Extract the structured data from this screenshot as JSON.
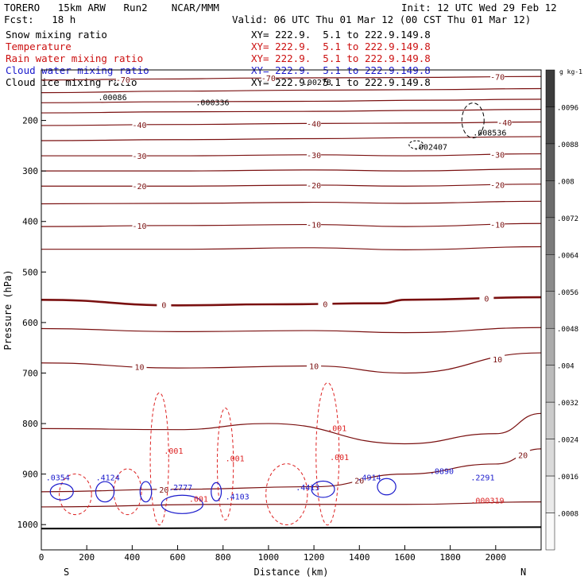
{
  "header": {
    "model": "TORERO   15km ARW   Run2    NCAR/MMM",
    "init": "Init: 12 UTC Wed 29 Feb 12",
    "fcst": "Fcst:   18 h",
    "valid": "Valid: 06 UTC Thu 01 Mar 12 (00 CST Thu 01 Mar 12)"
  },
  "legend": [
    {
      "field": "Snow mixing ratio",
      "xy": "XY= 222.9.  5.1 to 222.9.149.8",
      "color": "#000000"
    },
    {
      "field": "Temperature",
      "xy": "XY= 222.9.  5.1 to 222.9.149.8",
      "color": "#cc1111"
    },
    {
      "field": "Rain water mixing ratio",
      "xy": "XY= 222.9.  5.1 to 222.9.149.8",
      "color": "#cc1111"
    },
    {
      "field": "Cloud water mixing ratio",
      "xy": "XY= 222.9.  5.1 to 222.9.149.8",
      "color": "#1a1acc"
    },
    {
      "field": "Cloud ice mixing ratio",
      "xy": "XY= 222.9.  5.1 to 222.9.149.8",
      "color": "#000000"
    }
  ],
  "chart_data": {
    "type": "cross-section contour",
    "xlabel": "Distance (km)",
    "ylabel": "Pressure (hPa)",
    "xlim": [
      0,
      2200
    ],
    "ylim": [
      1050,
      100
    ],
    "x_ticks": [
      0,
      200,
      400,
      600,
      800,
      1000,
      1200,
      1400,
      1600,
      1800,
      2000
    ],
    "y_ticks": [
      200,
      300,
      400,
      500,
      600,
      700,
      800,
      900,
      1000
    ],
    "x_end_labels": {
      "left": "S",
      "right": "N"
    },
    "colorbar": {
      "unit": "g kg-1",
      "ticks": [
        ".0096",
        ".0088",
        ".008",
        ".0072",
        ".0064",
        ".0056",
        ".0048",
        ".004",
        ".0032",
        ".0024",
        ".0016",
        ".0008"
      ]
    },
    "temperature_contours": [
      {
        "label": "-70",
        "points": [
          [
            0,
            120
          ],
          [
            500,
            118
          ],
          [
            1000,
            116
          ],
          [
            1600,
            115
          ],
          [
            2200,
            113
          ]
        ]
      },
      {
        "label": "",
        "points": [
          [
            0,
            145
          ],
          [
            600,
            142
          ],
          [
            1200,
            140
          ],
          [
            1700,
            139
          ],
          [
            2200,
            137
          ]
        ]
      },
      {
        "label": "",
        "points": [
          [
            0,
            165
          ],
          [
            600,
            163
          ],
          [
            1200,
            162
          ],
          [
            1700,
            160
          ],
          [
            2200,
            158
          ]
        ]
      },
      {
        "label": "",
        "points": [
          [
            0,
            185
          ],
          [
            600,
            183
          ],
          [
            1200,
            182
          ],
          [
            1700,
            180
          ],
          [
            2200,
            178
          ]
        ]
      },
      {
        "label": "-40",
        "points": [
          [
            0,
            210
          ],
          [
            600,
            208
          ],
          [
            1200,
            206
          ],
          [
            1700,
            205
          ],
          [
            2200,
            203
          ]
        ]
      },
      {
        "label": "",
        "points": [
          [
            0,
            240
          ],
          [
            600,
            238
          ],
          [
            1200,
            236
          ],
          [
            1700,
            234
          ],
          [
            2200,
            232
          ]
        ]
      },
      {
        "label": "-30",
        "points": [
          [
            0,
            270
          ],
          [
            600,
            270
          ],
          [
            1200,
            268
          ],
          [
            1600,
            270
          ],
          [
            2200,
            266
          ]
        ]
      },
      {
        "label": "",
        "points": [
          [
            0,
            300
          ],
          [
            600,
            300
          ],
          [
            1200,
            298
          ],
          [
            1600,
            300
          ],
          [
            2200,
            296
          ]
        ]
      },
      {
        "label": "-20",
        "points": [
          [
            0,
            330
          ],
          [
            600,
            330
          ],
          [
            1200,
            328
          ],
          [
            1600,
            330
          ],
          [
            2200,
            326
          ]
        ]
      },
      {
        "label": "",
        "points": [
          [
            0,
            365
          ],
          [
            600,
            364
          ],
          [
            1200,
            362
          ],
          [
            1600,
            364
          ],
          [
            2200,
            360
          ]
        ]
      },
      {
        "label": "-10",
        "points": [
          [
            0,
            410
          ],
          [
            600,
            408
          ],
          [
            1200,
            406
          ],
          [
            1600,
            410
          ],
          [
            2200,
            404
          ]
        ]
      },
      {
        "label": "",
        "points": [
          [
            0,
            455
          ],
          [
            600,
            455
          ],
          [
            1200,
            452
          ],
          [
            1600,
            456
          ],
          [
            2200,
            450
          ]
        ]
      },
      {
        "label": "0",
        "points": [
          [
            0,
            555
          ],
          [
            600,
            566
          ],
          [
            1000,
            564
          ],
          [
            1500,
            562
          ],
          [
            1600,
            555
          ],
          [
            2200,
            550
          ]
        ]
      },
      {
        "label": "",
        "points": [
          [
            0,
            612
          ],
          [
            600,
            618
          ],
          [
            1200,
            616
          ],
          [
            1600,
            620
          ],
          [
            2200,
            610
          ]
        ]
      },
      {
        "label": "10",
        "points": [
          [
            0,
            680
          ],
          [
            600,
            690
          ],
          [
            1200,
            686
          ],
          [
            1600,
            700
          ],
          [
            2200,
            660
          ]
        ]
      },
      {
        "label": "",
        "points": [
          [
            0,
            810
          ],
          [
            600,
            812
          ],
          [
            1000,
            800
          ],
          [
            1600,
            840
          ],
          [
            2000,
            820
          ],
          [
            2200,
            780
          ]
        ]
      },
      {
        "label": "20",
        "points": [
          [
            0,
            935
          ],
          [
            600,
            930
          ],
          [
            1200,
            925
          ],
          [
            1600,
            900
          ],
          [
            2000,
            880
          ],
          [
            2200,
            850
          ]
        ]
      },
      {
        "label": "",
        "points": [
          [
            0,
            965
          ],
          [
            800,
            960
          ],
          [
            1600,
            960
          ],
          [
            2200,
            955
          ]
        ]
      }
    ],
    "cloud_labels": [
      {
        "text": ".00086",
        "x": 250,
        "y": 160
      },
      {
        "text": ".000336",
        "x": 680,
        "y": 170
      },
      {
        "text": ".00278",
        "x": 1150,
        "y": 130
      },
      {
        "text": ".008536",
        "x": 1900,
        "y": 230
      },
      {
        "text": ".002407",
        "x": 1640,
        "y": 258
      },
      {
        "text": ".0354",
        "x": 20,
        "y": 912
      },
      {
        "text": ".4124",
        "x": 240,
        "y": 912
      },
      {
        "text": ".2777",
        "x": 560,
        "y": 932
      },
      {
        "text": ".4103",
        "x": 810,
        "y": 950
      },
      {
        "text": ".4413",
        "x": 1120,
        "y": 932
      },
      {
        "text": ".4914",
        "x": 1390,
        "y": 912
      },
      {
        "text": ".0890",
        "x": 1710,
        "y": 900
      },
      {
        "text": ".2291",
        "x": 1890,
        "y": 912
      },
      {
        "text": ".000319",
        "x": 1890,
        "y": 958
      },
      {
        "text": ".001",
        "x": 540,
        "y": 860
      },
      {
        "text": ".001",
        "x": 810,
        "y": 875
      },
      {
        "text": ".001",
        "x": 1260,
        "y": 815
      },
      {
        "text": ".001",
        "x": 1270,
        "y": 872
      },
      {
        "text": ".001",
        "x": 650,
        "y": 955
      }
    ]
  }
}
